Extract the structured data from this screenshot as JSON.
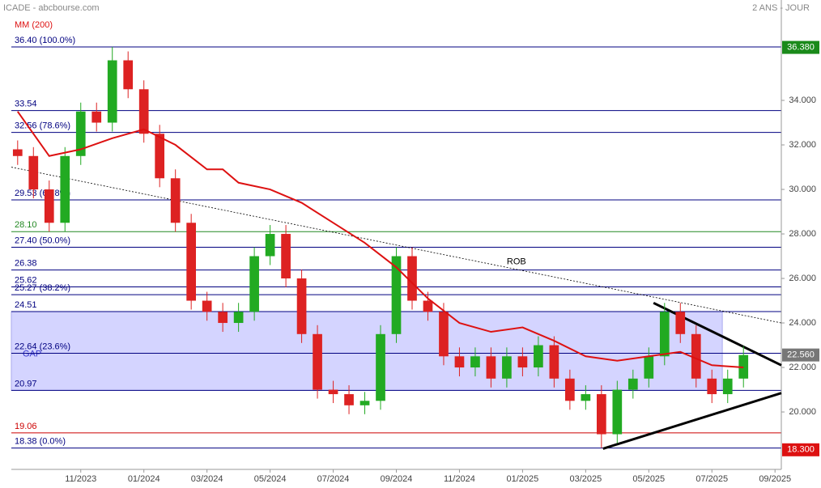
{
  "chart_data": {
    "type": "candlestick",
    "title": "ICADE - abcbourse.com",
    "period": "2 ANS - JOUR",
    "xlim": [
      -2.2,
      22.2
    ],
    "ylim": [
      17.42,
      38.51
    ],
    "xticks": [
      {
        "value": 0,
        "label": "11/2023"
      },
      {
        "value": 2,
        "label": "01/2024"
      },
      {
        "value": 4,
        "label": "03/2024"
      },
      {
        "value": 6,
        "label": "05/2024"
      },
      {
        "value": 8,
        "label": "07/2024"
      },
      {
        "value": 10,
        "label": "09/2024"
      },
      {
        "value": 12,
        "label": "11/2024"
      },
      {
        "value": 14,
        "label": "01/2025"
      },
      {
        "value": 16,
        "label": "03/2025"
      },
      {
        "value": 18,
        "label": "05/2025"
      },
      {
        "value": 20,
        "label": "07/2025"
      },
      {
        "value": 22,
        "label": "09/2025"
      }
    ],
    "yticks": [
      {
        "value": 20,
        "label": "20.000"
      },
      {
        "value": 22,
        "label": "22.000"
      },
      {
        "value": 24,
        "label": "24.000"
      },
      {
        "value": 26,
        "label": "26.000"
      },
      {
        "value": 28,
        "label": "28.000"
      },
      {
        "value": 30,
        "label": "30.000"
      },
      {
        "value": 32,
        "label": "32.000"
      },
      {
        "value": 34,
        "label": "34.000"
      }
    ],
    "up_color": "#22aa22",
    "down_color": "#dd2222",
    "x": [
      -2,
      -1.5,
      -1,
      -0.5,
      0,
      0.5,
      1,
      1.5,
      2,
      2.5,
      3,
      3.5,
      4,
      4.5,
      5,
      5.5,
      6,
      6.5,
      7,
      7.5,
      8,
      8.5,
      9,
      9.5,
      10,
      10.5,
      11,
      11.5,
      12,
      12.5,
      13,
      13.5,
      14,
      14.5,
      15,
      15.5,
      16,
      16.5,
      17,
      17.5,
      18,
      18.5,
      19,
      19.5,
      20,
      20.5,
      21
    ],
    "open": [
      31.8,
      31.5,
      30.0,
      28.5,
      31.5,
      33.5,
      33.0,
      35.8,
      34.5,
      32.5,
      30.5,
      28.5,
      25.0,
      24.5,
      24.0,
      24.5,
      27.0,
      28.0,
      26.0,
      23.5,
      21.0,
      20.8,
      20.3,
      20.5,
      23.5,
      27.0,
      25.0,
      24.5,
      22.5,
      22.0,
      22.5,
      21.5,
      22.5,
      22.0,
      23.0,
      21.5,
      20.5,
      20.8,
      19.0,
      21.0,
      21.5,
      22.5,
      24.5,
      23.5,
      21.5,
      20.8,
      21.5
    ],
    "high": [
      32.2,
      31.9,
      30.4,
      31.9,
      33.9,
      33.9,
      36.4,
      36.2,
      34.9,
      32.9,
      30.9,
      28.9,
      25.4,
      24.9,
      24.9,
      27.4,
      28.4,
      28.4,
      26.4,
      23.9,
      21.4,
      21.2,
      20.9,
      23.9,
      27.4,
      27.4,
      25.4,
      24.9,
      22.9,
      22.9,
      22.9,
      22.9,
      22.9,
      23.4,
      23.4,
      21.9,
      21.2,
      21.2,
      21.4,
      21.9,
      22.9,
      24.9,
      24.9,
      23.9,
      21.9,
      21.9,
      22.96
    ],
    "low": [
      31.1,
      29.6,
      28.1,
      28.1,
      31.1,
      32.6,
      32.6,
      34.1,
      32.1,
      30.1,
      28.1,
      24.6,
      24.1,
      23.6,
      23.6,
      24.1,
      26.6,
      25.6,
      23.1,
      20.6,
      20.4,
      19.9,
      19.9,
      20.1,
      23.1,
      24.6,
      24.1,
      22.1,
      21.6,
      21.6,
      21.1,
      21.1,
      21.6,
      21.6,
      21.1,
      20.1,
      20.1,
      18.38,
      18.6,
      20.6,
      21.1,
      22.1,
      23.1,
      21.1,
      20.4,
      20.4,
      21.1
    ],
    "close": [
      31.5,
      30.0,
      28.5,
      31.5,
      33.5,
      33.0,
      35.8,
      34.5,
      32.5,
      30.5,
      28.5,
      25.0,
      24.5,
      24.0,
      24.5,
      27.0,
      28.0,
      26.0,
      23.5,
      21.0,
      20.8,
      20.3,
      20.5,
      23.5,
      27.0,
      25.0,
      24.5,
      22.5,
      22.0,
      22.5,
      21.5,
      22.5,
      22.0,
      23.0,
      21.5,
      20.5,
      20.8,
      19.0,
      21.0,
      21.5,
      22.5,
      24.5,
      23.5,
      21.5,
      20.8,
      21.5,
      22.56
    ],
    "moving_average": {
      "name": "MM (200)",
      "color": "#dd1111",
      "x": [
        -2,
        -1,
        0,
        1,
        2,
        3,
        4,
        4.5,
        5,
        6,
        7,
        8,
        9,
        10,
        11,
        12,
        13,
        14,
        15,
        16,
        17,
        18,
        19,
        20,
        21
      ],
      "values": [
        33.5,
        31.5,
        31.8,
        32.3,
        32.7,
        32.0,
        30.9,
        30.9,
        30.3,
        30.0,
        29.4,
        28.5,
        27.6,
        26.5,
        25.1,
        24.0,
        23.6,
        23.8,
        23.2,
        22.5,
        22.3,
        22.5,
        22.7,
        22.1,
        22.0
      ]
    },
    "levels": [
      {
        "value": 36.4,
        "label": "36.40 (100.0%)",
        "color": "#000080"
      },
      {
        "value": 33.54,
        "label": "33.54",
        "color": "#000080"
      },
      {
        "value": 32.56,
        "label": "32.56 (78.6%)",
        "color": "#000080"
      },
      {
        "value": 29.53,
        "label": "29.53 (61.8%)",
        "color": "#000080"
      },
      {
        "value": 28.1,
        "label": "28.10",
        "color": "#228822"
      },
      {
        "value": 27.4,
        "label": "27.40 (50.0%)",
        "color": "#000080"
      },
      {
        "value": 26.38,
        "label": "26.38",
        "color": "#000080"
      },
      {
        "value": 25.62,
        "label": "25.62",
        "color": "#000080"
      },
      {
        "value": 25.27,
        "label": "25.27 (38.2%)",
        "color": "#000080"
      },
      {
        "value": 24.51,
        "label": "24.51",
        "color": "#000080"
      },
      {
        "value": 22.64,
        "label": "22.64 (23.6%)",
        "color": "#000080"
      },
      {
        "value": 20.97,
        "label": "20.97",
        "color": "#000080"
      },
      {
        "value": 19.06,
        "label": "19.06",
        "color": "#cc0000"
      },
      {
        "value": 18.38,
        "label": "18.38 (0.0%)",
        "color": "#000080"
      }
    ],
    "gap_zone": {
      "label": "GAP",
      "x": [
        -2.2,
        20.33
      ],
      "y": [
        20.97,
        24.51
      ],
      "color": "#ccccff"
    },
    "annotation": {
      "text": "ROB",
      "x": 13.5,
      "y": 26.75
    },
    "trendlines": [
      {
        "x": [
          -2.2,
          22.2
        ],
        "y": [
          31.0,
          24.0
        ],
        "style": "dotted"
      },
      {
        "x": [
          18.15,
          22.2
        ],
        "y": [
          24.9,
          22.1
        ],
        "style": "solid"
      },
      {
        "x": [
          16.55,
          22.2
        ],
        "y": [
          18.35,
          20.85
        ],
        "style": "solid"
      }
    ],
    "price_flags": [
      {
        "value": 36.38,
        "label": "36.380",
        "color": "#1a8a1a"
      },
      {
        "value": 22.56,
        "label": "22.560",
        "color": "#777777"
      },
      {
        "value": 18.3,
        "label": "18.300",
        "color": "#dd1111"
      }
    ]
  }
}
